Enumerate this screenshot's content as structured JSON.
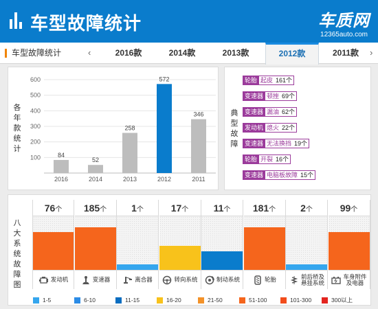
{
  "header": {
    "title": "车型故障统计",
    "brand_name": "车质网",
    "brand_url": "12365auto.com"
  },
  "tabs": {
    "label": "车型故障统计",
    "prev_icon": "‹",
    "next_icon": "›",
    "items": [
      {
        "label": "2016款",
        "active": false
      },
      {
        "label": "2014款",
        "active": false
      },
      {
        "label": "2013款",
        "active": false
      },
      {
        "label": "2012款",
        "active": true
      },
      {
        "label": "2011款",
        "active": false
      }
    ]
  },
  "bar_panel": {
    "ylabel_chars": [
      "各",
      "年",
      "款",
      "统",
      "计"
    ]
  },
  "chart_data": {
    "type": "bar",
    "categories": [
      "2016",
      "2014",
      "2013",
      "2012",
      "2011"
    ],
    "values": [
      84,
      52,
      258,
      572,
      346
    ],
    "ylabel": "各年款统计",
    "ylim": [
      0,
      600
    ],
    "yticks": [
      100,
      200,
      300,
      400,
      500,
      600
    ],
    "grid": true,
    "highlight_index": 3,
    "colors": {
      "bar": "#bdbdbd",
      "highlight": "#0a7ccc"
    }
  },
  "typical_faults": {
    "label_chars": [
      "典",
      "型",
      "故",
      "障"
    ],
    "items": [
      {
        "system": "轮胎",
        "desc": "起皮",
        "count": "161个"
      },
      {
        "system": "变速器",
        "desc": "顿挫",
        "count": "69个"
      },
      {
        "system": "变速器",
        "desc": "漏油",
        "count": "62个"
      },
      {
        "system": "发动机",
        "desc": "熄火",
        "count": "22个"
      },
      {
        "system": "变速器",
        "desc": "无法换挡",
        "count": "19个"
      },
      {
        "system": "轮胎",
        "desc": "开裂",
        "count": "16个"
      },
      {
        "system": "变速器",
        "desc": "电脑板故障",
        "count": "15个"
      }
    ]
  },
  "systems": {
    "label_chars": [
      "八",
      "大",
      "系",
      "统",
      "故",
      "障",
      "图"
    ],
    "unit": "个",
    "items": [
      {
        "name": "发动机",
        "count": "76",
        "level": 0.7,
        "color": "#f5651c",
        "icon": "engine-icon"
      },
      {
        "name": "变速器",
        "count": "185",
        "level": 0.8,
        "color": "#f5651c",
        "icon": "gear-shift-icon"
      },
      {
        "name": "离合器",
        "count": "1",
        "level": 0.1,
        "color": "#35a6ee",
        "icon": "clutch-pedal-icon"
      },
      {
        "name": "转向系统",
        "count": "17",
        "level": 0.45,
        "color": "#f8c21b",
        "icon": "steering-wheel-icon"
      },
      {
        "name": "制动系统",
        "count": "11",
        "level": 0.35,
        "color": "#0a7ccc",
        "icon": "brake-disc-icon"
      },
      {
        "name": "轮胎",
        "count": "181",
        "level": 0.8,
        "color": "#f5651c",
        "icon": "tire-icon"
      },
      {
        "name": "前后桥及悬挂系统",
        "name_lines": [
          "前后桥及",
          "悬挂系统"
        ],
        "count": "2",
        "level": 0.1,
        "color": "#35a6ee",
        "icon": "suspension-icon"
      },
      {
        "name": "车身附件及电器",
        "name_lines": [
          "车身附件",
          "及电器"
        ],
        "count": "99",
        "level": 0.7,
        "color": "#f5651c",
        "icon": "battery-icon"
      }
    ]
  },
  "legend": [
    {
      "label": "1-5",
      "color": "#35a6ee"
    },
    {
      "label": "6-10",
      "color": "#2c8ce6"
    },
    {
      "label": "11-15",
      "color": "#0a6dc0"
    },
    {
      "label": "16-20",
      "color": "#f8c21b"
    },
    {
      "label": "21-50",
      "color": "#f39229"
    },
    {
      "label": "51-100",
      "color": "#f5651c"
    },
    {
      "label": "101-300",
      "color": "#f24c1b"
    },
    {
      "label": "300以上",
      "color": "#e3241f"
    }
  ]
}
